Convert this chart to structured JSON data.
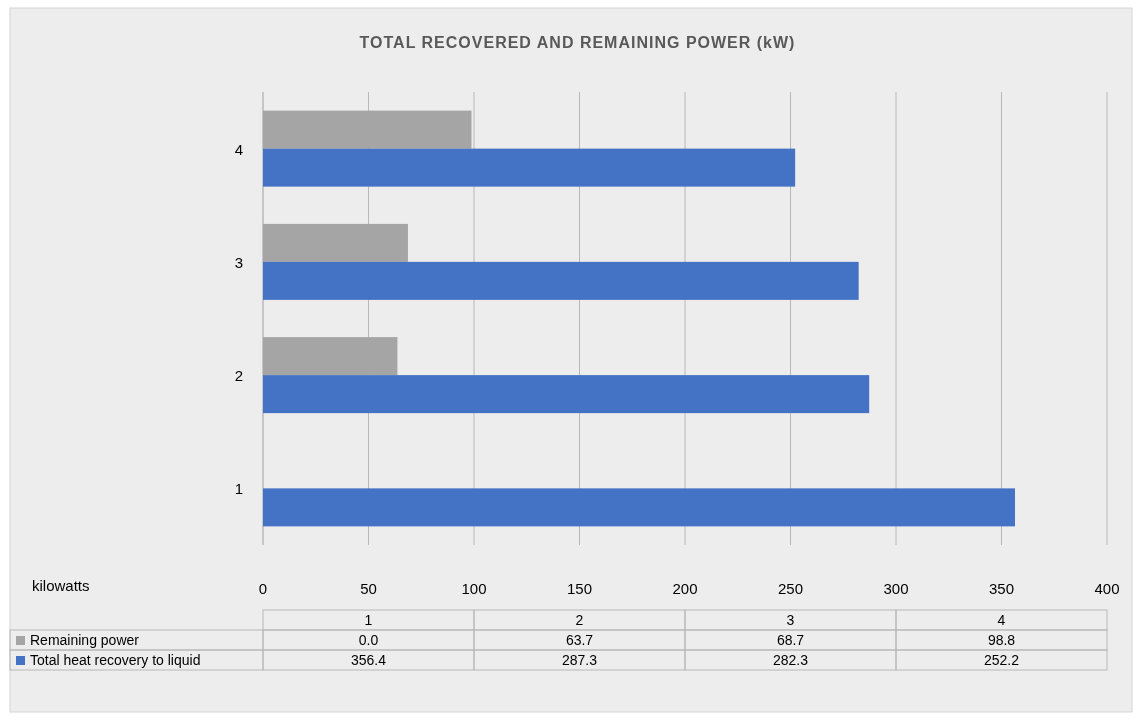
{
  "chart_data": {
    "type": "bar",
    "orientation": "horizontal",
    "title": "TOTAL RECOVERED AND REMAINING POWER (kW)",
    "categories": [
      "4",
      "3",
      "2",
      "1"
    ],
    "series": [
      {
        "name": "Remaining power",
        "color": "#a5a5a5",
        "values": [
          98.8,
          68.7,
          63.7,
          0.0
        ]
      },
      {
        "name": "Total heat recovery to liquid",
        "color": "#4472c4",
        "values": [
          252.2,
          282.3,
          287.3,
          356.4
        ]
      }
    ],
    "annotations": [
      "kilowatts",
      "0.0",
      "63.7",
      "68.7",
      "98.8",
      "356.4",
      "287.3",
      "282.3",
      "252.2"
    ],
    "xlim": [
      0,
      400
    ],
    "xticks": [
      0,
      50,
      100,
      150,
      200,
      250,
      300,
      350,
      400
    ],
    "grid": "x",
    "legend": "bottom"
  }
}
